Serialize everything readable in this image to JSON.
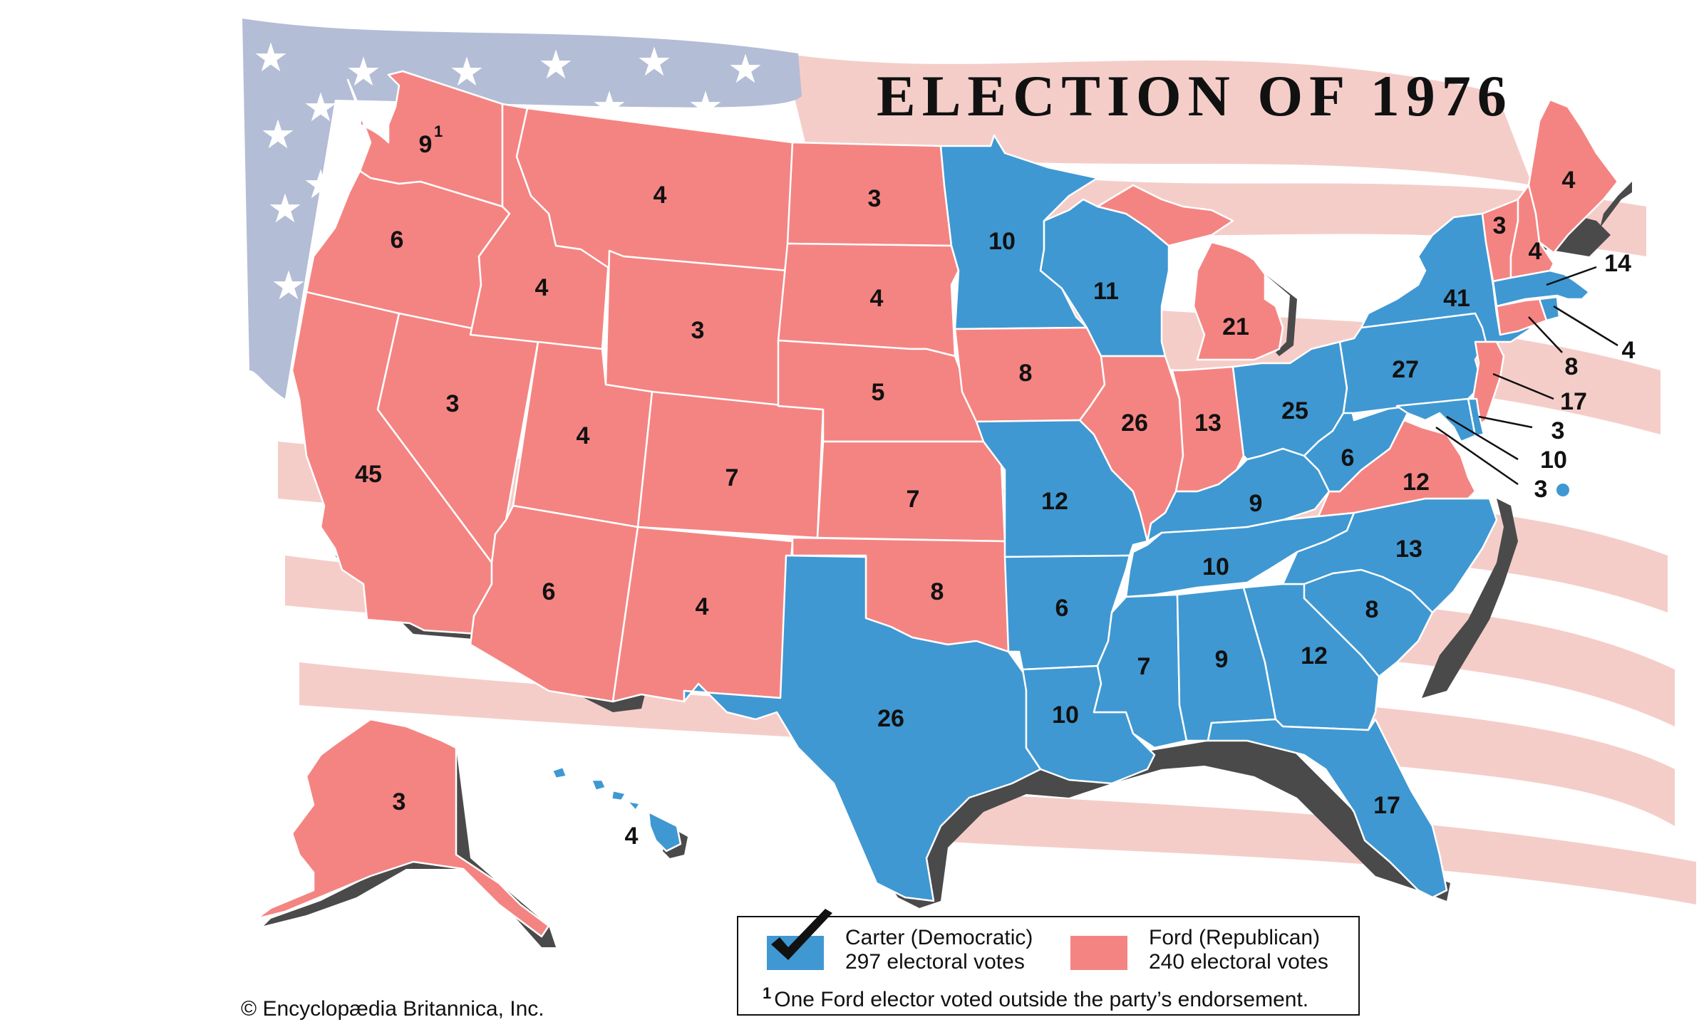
{
  "title": "ELECTION OF 1976",
  "colors": {
    "democratic": "#3f98d2",
    "republican": "#f48482",
    "flag_canton": "#b3bdd6",
    "flag_stripe": "#f4cdc9"
  },
  "legend": {
    "carter_name": "Carter (Democratic)",
    "carter_votes": "297 electoral votes",
    "ford_name": "Ford (Republican)",
    "ford_votes": "240 electoral votes",
    "footnote_mark": "1",
    "footnote_text": "One Ford elector voted outside the party’s endorsement."
  },
  "copyright": "© Encyclopædia Britannica, Inc.",
  "states": {
    "wa": {
      "ev": "9",
      "sup": "1",
      "party": "republican"
    },
    "or": {
      "ev": "6",
      "party": "republican"
    },
    "ca": {
      "ev": "45",
      "party": "republican"
    },
    "nv": {
      "ev": "3",
      "party": "republican"
    },
    "id": {
      "ev": "4",
      "party": "republican"
    },
    "mt": {
      "ev": "4",
      "party": "republican"
    },
    "wy": {
      "ev": "3",
      "party": "republican"
    },
    "ut": {
      "ev": "4",
      "party": "republican"
    },
    "az": {
      "ev": "6",
      "party": "republican"
    },
    "co": {
      "ev": "7",
      "party": "republican"
    },
    "nm": {
      "ev": "4",
      "party": "republican"
    },
    "nd": {
      "ev": "3",
      "party": "republican"
    },
    "sd": {
      "ev": "4",
      "party": "republican"
    },
    "ne": {
      "ev": "5",
      "party": "republican"
    },
    "ks": {
      "ev": "7",
      "party": "republican"
    },
    "ok": {
      "ev": "8",
      "party": "republican"
    },
    "tx": {
      "ev": "26",
      "party": "democratic"
    },
    "mn": {
      "ev": "10",
      "party": "democratic"
    },
    "ia": {
      "ev": "8",
      "party": "republican"
    },
    "mo": {
      "ev": "12",
      "party": "democratic"
    },
    "ar": {
      "ev": "6",
      "party": "democratic"
    },
    "la": {
      "ev": "10",
      "party": "democratic"
    },
    "wi": {
      "ev": "11",
      "party": "democratic"
    },
    "il": {
      "ev": "26",
      "party": "republican"
    },
    "mi": {
      "ev": "21",
      "party": "republican"
    },
    "in": {
      "ev": "13",
      "party": "republican"
    },
    "oh": {
      "ev": "25",
      "party": "democratic"
    },
    "ky": {
      "ev": "9",
      "party": "democratic"
    },
    "tn": {
      "ev": "10",
      "party": "democratic"
    },
    "ms": {
      "ev": "7",
      "party": "democratic"
    },
    "al": {
      "ev": "9",
      "party": "democratic"
    },
    "ga": {
      "ev": "12",
      "party": "democratic"
    },
    "fl": {
      "ev": "17",
      "party": "democratic"
    },
    "sc": {
      "ev": "8",
      "party": "democratic"
    },
    "nc": {
      "ev": "13",
      "party": "democratic"
    },
    "va": {
      "ev": "12",
      "party": "republican"
    },
    "wv": {
      "ev": "6",
      "party": "democratic"
    },
    "pa": {
      "ev": "27",
      "party": "democratic"
    },
    "ny": {
      "ev": "41",
      "party": "democratic"
    },
    "vt": {
      "ev": "3",
      "party": "republican"
    },
    "nh": {
      "ev": "4",
      "party": "republican"
    },
    "me": {
      "ev": "4",
      "party": "republican"
    },
    "ma": {
      "ev": "14",
      "party": "democratic"
    },
    "ri": {
      "ev": "4",
      "party": "democratic"
    },
    "ct": {
      "ev": "8",
      "party": "republican"
    },
    "nj": {
      "ev": "17",
      "party": "republican"
    },
    "de": {
      "ev": "3",
      "party": "democratic"
    },
    "md": {
      "ev": "10",
      "party": "democratic"
    },
    "dc": {
      "ev": "3",
      "party": "democratic"
    },
    "ak": {
      "ev": "3",
      "party": "republican"
    },
    "hi": {
      "ev": "4",
      "party": "democratic"
    }
  }
}
